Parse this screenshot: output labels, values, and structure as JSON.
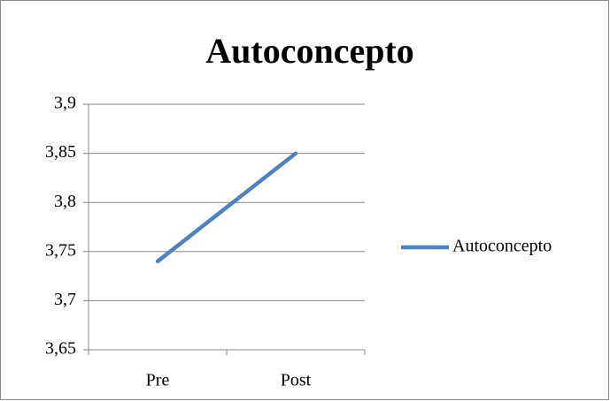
{
  "chart_data": {
    "type": "line",
    "title": "Autoconcepto",
    "categories": [
      "Pre",
      "Post"
    ],
    "series": [
      {
        "name": "Autoconcepto",
        "color": "#4f81bd",
        "values": [
          3.74,
          3.85
        ]
      }
    ],
    "ylim": [
      3.65,
      3.9
    ],
    "yticks": [
      {
        "value": 3.65,
        "label": "3,65"
      },
      {
        "value": 3.7,
        "label": "3,7"
      },
      {
        "value": 3.75,
        "label": "3,75"
      },
      {
        "value": 3.8,
        "label": "3,8"
      },
      {
        "value": 3.85,
        "label": "3,85"
      },
      {
        "value": 3.9,
        "label": "3,9"
      }
    ],
    "grid": true,
    "legend": "right"
  }
}
